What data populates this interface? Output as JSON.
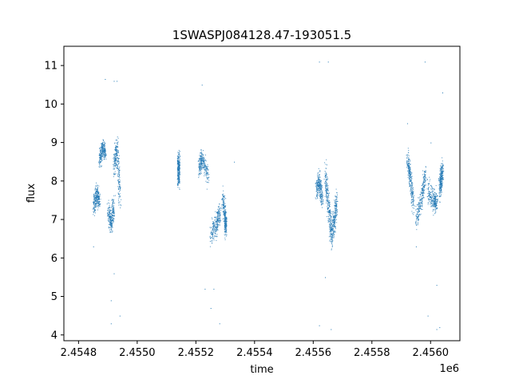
{
  "chart_data": {
    "type": "scatter",
    "title": "1SWASPJ084128.47-193051.5",
    "xlabel": "time",
    "ylabel": "flux",
    "x_offset_label": "1e6",
    "xlim": [
      2.45475,
      2.4561
    ],
    "ylim": [
      3.85,
      11.5
    ],
    "x_ticks": [
      2.4548,
      2.455,
      2.4552,
      2.4554,
      2.4556,
      2.4558,
      2.456
    ],
    "x_tick_labels": [
      "2.4548",
      "2.4550",
      "2.4552",
      "2.4554",
      "2.4556",
      "2.4558",
      "2.4560"
    ],
    "y_ticks": [
      4,
      5,
      6,
      7,
      8,
      9,
      10,
      11
    ],
    "y_tick_labels": [
      "4",
      "5",
      "6",
      "7",
      "8",
      "9",
      "10",
      "11"
    ],
    "grid": false,
    "series": [
      {
        "color": "#1f77b4",
        "segments": [
          {
            "x": [
              2.45485,
              2.45486,
              2.45487
            ],
            "y": [
              7.3,
              7.7,
              7.5
            ],
            "spread": 0.3
          },
          {
            "x": [
              2.45487,
              2.45488,
              2.45489
            ],
            "y": [
              8.5,
              8.9,
              8.7
            ],
            "spread": 0.25
          },
          {
            "x": [
              2.4549,
              2.45491,
              2.45492
            ],
            "y": [
              7.2,
              6.9,
              7.4
            ],
            "spread": 0.35
          },
          {
            "x": [
              2.45492,
              2.45493,
              2.45494
            ],
            "y": [
              8.4,
              8.9,
              7.5
            ],
            "spread": 0.4
          },
          {
            "x": [
              2.45514,
              2.45514
            ],
            "y": [
              8.0,
              8.6
            ],
            "spread": 0.3
          },
          {
            "x": [
              2.45521,
              2.45522,
              2.45524
            ],
            "y": [
              8.4,
              8.6,
              8.1
            ],
            "spread": 0.3
          },
          {
            "x": [
              2.45525,
              2.45527,
              2.45528
            ],
            "y": [
              6.6,
              6.9,
              7.2
            ],
            "spread": 0.35
          },
          {
            "x": [
              2.45529,
              2.4553,
              2.4553
            ],
            "y": [
              7.6,
              7.0,
              6.8
            ],
            "spread": 0.35
          },
          {
            "x": [
              2.45561,
              2.45562,
              2.45563
            ],
            "y": [
              7.8,
              8.0,
              7.5
            ],
            "spread": 0.35
          },
          {
            "x": [
              2.45564,
              2.45565,
              2.45566
            ],
            "y": [
              8.2,
              7.4,
              6.7
            ],
            "spread": 0.45
          },
          {
            "x": [
              2.45566,
              2.45567,
              2.45568
            ],
            "y": [
              6.5,
              7.0,
              7.5
            ],
            "spread": 0.4
          },
          {
            "x": [
              2.45592,
              2.45593,
              2.45594
            ],
            "y": [
              8.6,
              8.1,
              7.4
            ],
            "spread": 0.35
          },
          {
            "x": [
              2.45595,
              2.45597,
              2.45598
            ],
            "y": [
              7.0,
              7.6,
              8.2
            ],
            "spread": 0.35
          },
          {
            "x": [
              2.45599,
              2.45601,
              2.45602
            ],
            "y": [
              7.8,
              7.5,
              7.4
            ],
            "spread": 0.35
          },
          {
            "x": [
              2.45603,
              2.45604
            ],
            "y": [
              7.8,
              8.3
            ],
            "spread": 0.35
          }
        ],
        "outliers": [
          [
            2.45489,
            10.65
          ],
          [
            2.45492,
            10.6
          ],
          [
            2.45493,
            10.6
          ],
          [
            2.45491,
            4.9
          ],
          [
            2.45491,
            4.3
          ],
          [
            2.45494,
            4.5
          ],
          [
            2.45485,
            6.3
          ],
          [
            2.45492,
            5.6
          ],
          [
            2.45522,
            10.5
          ],
          [
            2.45523,
            5.2
          ],
          [
            2.45526,
            5.2
          ],
          [
            2.45528,
            4.3
          ],
          [
            2.45525,
            4.7
          ],
          [
            2.45533,
            8.5
          ],
          [
            2.45562,
            11.1
          ],
          [
            2.45565,
            11.1
          ],
          [
            2.45562,
            4.25
          ],
          [
            2.45566,
            4.15
          ],
          [
            2.45564,
            5.5
          ],
          [
            2.45598,
            11.1
          ],
          [
            2.45602,
            4.15
          ],
          [
            2.45603,
            4.2
          ],
          [
            2.45599,
            4.5
          ],
          [
            2.45592,
            9.5
          ],
          [
            2.45604,
            10.3
          ],
          [
            2.456,
            9.0
          ],
          [
            2.45595,
            6.3
          ],
          [
            2.45602,
            5.3
          ]
        ]
      }
    ]
  }
}
